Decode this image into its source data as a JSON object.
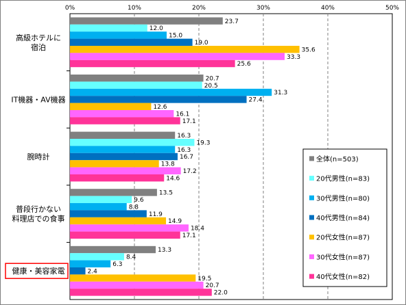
{
  "chart_data": {
    "type": "bar",
    "orientation": "horizontal",
    "xlim": [
      0,
      50
    ],
    "x_ticks": [
      0,
      10,
      20,
      30,
      40,
      50
    ],
    "x_tick_labels": [
      "0%",
      "10%",
      "20%",
      "30%",
      "40%",
      "50%"
    ],
    "grid": true,
    "legend_position": "right",
    "categories": [
      {
        "lines": [
          "高級ホテルに",
          "宿泊"
        ],
        "highlighted": false
      },
      {
        "lines": [
          "IT機器・AV機器"
        ],
        "highlighted": false
      },
      {
        "lines": [
          "腕時計"
        ],
        "highlighted": false
      },
      {
        "lines": [
          "普段行かない",
          "料理店での食事"
        ],
        "highlighted": false
      },
      {
        "lines": [
          "健康・美容家電"
        ],
        "highlighted": true
      }
    ],
    "series": [
      {
        "name": "全体(n=503)",
        "color": "#808080",
        "values": [
          23.7,
          20.7,
          16.3,
          13.5,
          13.3
        ],
        "labels": [
          "23.7",
          "20.7",
          "16.3",
          "13.5",
          "13.3"
        ]
      },
      {
        "name": "20代男性(n=83)",
        "color": "#66ffff",
        "values": [
          12.0,
          20.5,
          19.3,
          9.6,
          8.4
        ],
        "labels": [
          "12.0",
          "20.5",
          "19.3",
          "9.6",
          "8.4"
        ]
      },
      {
        "name": "30代男性(n=80)",
        "color": "#00b0f0",
        "values": [
          15.0,
          31.3,
          16.3,
          8.8,
          6.3
        ],
        "labels": [
          "15.0",
          "31.3",
          "16.3",
          "8.8",
          "6.3"
        ]
      },
      {
        "name": "40代男性(n=84)",
        "color": "#0070c0",
        "values": [
          19.0,
          27.4,
          16.7,
          11.9,
          2.4
        ],
        "labels": [
          "19.0",
          "27.4",
          "16.7",
          "11.9",
          "2.4"
        ]
      },
      {
        "name": "20代女性(n=87)",
        "color": "#ffc000",
        "values": [
          35.6,
          12.6,
          13.8,
          14.9,
          19.5
        ],
        "labels": [
          "35.6",
          "12.6",
          "13.8",
          "14.9",
          "19.5"
        ]
      },
      {
        "name": "30代女性(n=87)",
        "color": "#ff66ff",
        "values": [
          33.3,
          16.1,
          17.2,
          18.4,
          20.7
        ],
        "labels": [
          "33.3",
          "16.1",
          "17.2",
          "18.4",
          "20.7"
        ]
      },
      {
        "name": "40代女性(n=82)",
        "color": "#ff3399",
        "values": [
          25.6,
          17.1,
          14.6,
          17.1,
          22.0
        ],
        "labels": [
          "25.6",
          "17.1",
          "14.6",
          "17.1",
          "22.0"
        ]
      }
    ],
    "colors": {
      "grid": "#7f7f7f",
      "axis": "#000000",
      "highlight_box": "#ff0000"
    }
  }
}
